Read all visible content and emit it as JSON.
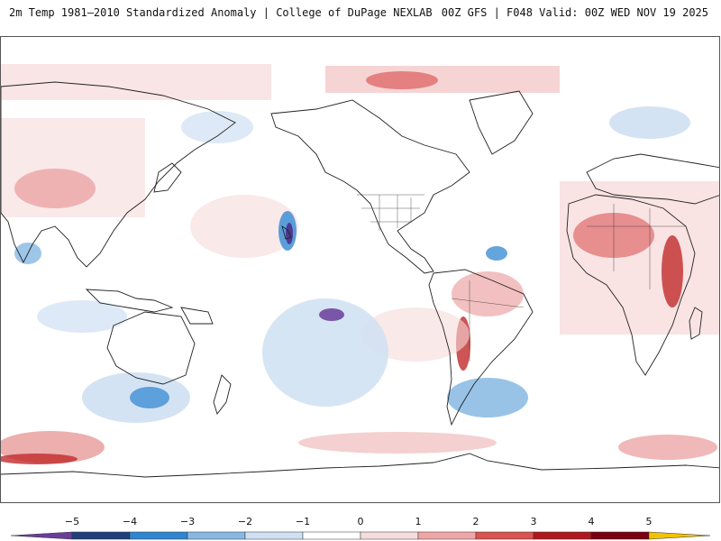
{
  "header": {
    "left_title": "2m Temp 1981–2010 Standardized Anomaly | College of DuPage NEXLAB",
    "right_title": "00Z GFS | F048 Valid: 00Z WED NOV 19 2025"
  },
  "colorbar": {
    "ticks": [
      "−5",
      "−4",
      "−3",
      "−2",
      "−1",
      "0",
      "1",
      "2",
      "3",
      "4",
      "5"
    ],
    "colors": {
      "neg5": "#6a3d9a",
      "neg4": "#1f3f7a",
      "neg3": "#2f86cf",
      "neg2": "#86b8e3",
      "neg1": "#cfe1f2",
      "zero": "#ffffff",
      "pos1": "#f7dcdc",
      "pos2": "#efa6a6",
      "pos3": "#d9534f",
      "pos4": "#b0171f",
      "pos5": "#7a0010",
      "over": "#f2c200"
    }
  },
  "map": {
    "projection": "Pacific-centered equirectangular",
    "warm_color": "#f4c9c9",
    "warm_strong": "#e06a6a",
    "cold_color": "#cfe0f2",
    "cold_strong": "#3e8fd6",
    "outline_color": "#222222"
  }
}
